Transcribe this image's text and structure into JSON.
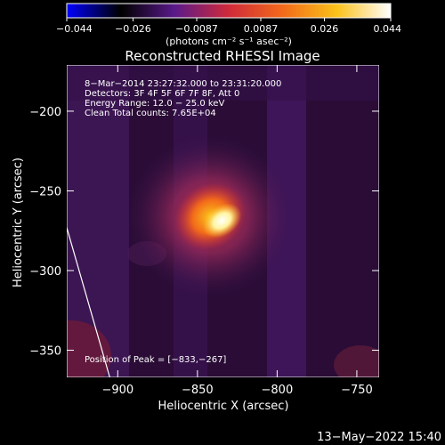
{
  "chart_data": {
    "type": "heatmap",
    "title": "Reconstructed RHESSI Image",
    "colorbar": {
      "min": -0.044,
      "max": 0.044,
      "ticks": [
        {
          "value": -0.044,
          "label": "−0.044"
        },
        {
          "value": -0.026,
          "label": "−0.026"
        },
        {
          "value": -0.0087,
          "label": "−0.0087"
        },
        {
          "value": 0.0087,
          "label": "0.0087"
        },
        {
          "value": 0.026,
          "label": "0.026"
        },
        {
          "value": 0.044,
          "label": "0.044"
        }
      ],
      "units_label": "(photons cm⁻² s⁻¹ asec⁻²)",
      "colormap": [
        "#0000ff",
        "#000000",
        "#5a1a8a",
        "#d02a3a",
        "#f26a1a",
        "#fbc21a",
        "#ffffff"
      ]
    },
    "xlabel": "Heliocentric X (arcsec)",
    "ylabel": "Heliocentric Y (arcsec)",
    "xlim": [
      -932,
      -736
    ],
    "ylim": [
      -367,
      -171
    ],
    "x_ticks": [
      {
        "value": -900,
        "label": "−900"
      },
      {
        "value": -850,
        "label": "−850"
      },
      {
        "value": -800,
        "label": "−800"
      },
      {
        "value": -750,
        "label": "−750"
      }
    ],
    "y_ticks": [
      {
        "value": -200,
        "label": "−200"
      },
      {
        "value": -250,
        "label": "−250"
      },
      {
        "value": -300,
        "label": "−300"
      },
      {
        "value": -350,
        "label": "−350"
      }
    ],
    "info_lines": [
      "8−Mar−2014 23:27:32.000  to  23:31:20.000",
      "Detectors: 3F 4F 5F 6F 7F 8F, Att 0",
      "Energy Range: 12.0 − 25.0 keV",
      "Clean     Total counts: 7.65E+04"
    ],
    "peak_label": "Position of Peak = [−833,−267]",
    "peak": {
      "x": -833,
      "y": -267
    },
    "source": {
      "center_x": -842,
      "center_y": -266,
      "core_value": 0.044
    },
    "limb_line": [
      {
        "x": -932,
        "y": -273
      },
      {
        "x": -905,
        "y": -367
      }
    ],
    "grid": false
  },
  "timestamp": "13−May−2022 15:40"
}
